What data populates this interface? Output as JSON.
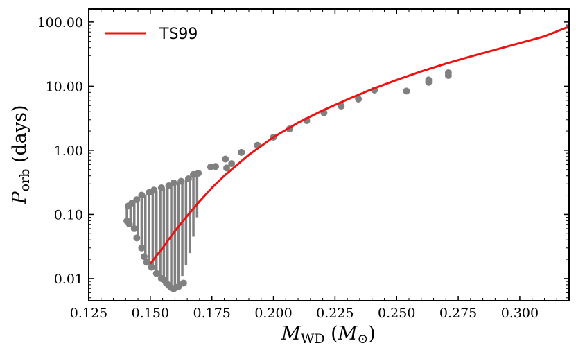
{
  "chart_data": {
    "type": "scatter",
    "title": "",
    "xlabel": {
      "main": "M",
      "sub": "WD",
      "unit_main": "M",
      "unit_sub": "⊙"
    },
    "ylabel": {
      "main": "P",
      "sub": "orb",
      "rest": "(days)"
    },
    "xlim": [
      0.125,
      0.32
    ],
    "ylim": [
      0.0045,
      160
    ],
    "yscale": "log",
    "x_ticks": [
      "0.125",
      "0.150",
      "0.175",
      "0.200",
      "0.225",
      "0.250",
      "0.275",
      "0.300"
    ],
    "y_ticks": [
      "0.01",
      "0.10",
      "1.00",
      "10.00",
      "100.00"
    ],
    "grid": false,
    "legend": {
      "position": "top-left",
      "entries": [
        {
          "label": "TS99",
          "color": "#ee1111"
        }
      ]
    },
    "series": [
      {
        "name": "TS99",
        "kind": "line",
        "color": "#ee1111",
        "x": [
          0.15,
          0.155,
          0.16,
          0.165,
          0.17,
          0.175,
          0.18,
          0.19,
          0.2,
          0.21,
          0.22,
          0.23,
          0.24,
          0.25,
          0.26,
          0.27,
          0.28,
          0.29,
          0.3,
          0.31,
          0.32
        ],
        "y": [
          0.017,
          0.03,
          0.055,
          0.095,
          0.16,
          0.26,
          0.4,
          0.85,
          1.6,
          2.7,
          4.2,
          6.2,
          9.0,
          12.5,
          17.0,
          22.5,
          29.0,
          37.0,
          47.0,
          60.0,
          85.0
        ]
      },
      {
        "name": "models",
        "kind": "scatter",
        "color": "#808080",
        "x": [
          0.2,
          0.2065,
          0.2135,
          0.2205,
          0.2275,
          0.2345,
          0.241,
          0.254,
          0.263,
          0.263,
          0.271,
          0.271,
          0.1935,
          0.187,
          0.183,
          0.181,
          0.1805,
          0.1765,
          0.1745,
          0.1695,
          0.1675,
          0.1655,
          0.1625,
          0.1595,
          0.1575,
          0.1545,
          0.1515,
          0.1495,
          0.1465,
          0.1445,
          0.1425,
          0.141,
          0.1405,
          0.1415,
          0.1435,
          0.1445,
          0.1465,
          0.1475,
          0.1485,
          0.1505,
          0.1525,
          0.1545,
          0.1555,
          0.1565,
          0.1575,
          0.1585,
          0.1595,
          0.1615,
          0.1635
        ],
        "y": [
          1.6,
          2.15,
          2.9,
          3.85,
          4.9,
          6.3,
          8.7,
          8.4,
          11.5,
          12.5,
          14.7,
          16.2,
          1.2,
          0.93,
          0.62,
          0.53,
          0.73,
          0.56,
          0.55,
          0.44,
          0.42,
          0.36,
          0.33,
          0.31,
          0.28,
          0.26,
          0.24,
          0.22,
          0.2,
          0.17,
          0.15,
          0.135,
          0.079,
          0.071,
          0.06,
          0.043,
          0.03,
          0.022,
          0.018,
          0.015,
          0.012,
          0.01,
          0.0095,
          0.0085,
          0.0078,
          0.0072,
          0.0069,
          0.0075,
          0.0085
        ]
      }
    ],
    "vertical_bands": {
      "color": "#808080",
      "segments": [
        {
          "x": 0.1405,
          "y_low": 0.075,
          "y_high": 0.14
        },
        {
          "x": 0.142,
          "y_low": 0.065,
          "y_high": 0.15
        },
        {
          "x": 0.1435,
          "y_low": 0.055,
          "y_high": 0.16
        },
        {
          "x": 0.145,
          "y_low": 0.04,
          "y_high": 0.17
        },
        {
          "x": 0.1465,
          "y_low": 0.03,
          "y_high": 0.185
        },
        {
          "x": 0.148,
          "y_low": 0.02,
          "y_high": 0.2
        },
        {
          "x": 0.1495,
          "y_low": 0.016,
          "y_high": 0.21
        },
        {
          "x": 0.151,
          "y_low": 0.014,
          "y_high": 0.22
        },
        {
          "x": 0.1525,
          "y_low": 0.012,
          "y_high": 0.235
        },
        {
          "x": 0.154,
          "y_low": 0.0105,
          "y_high": 0.245
        },
        {
          "x": 0.1555,
          "y_low": 0.0095,
          "y_high": 0.26
        },
        {
          "x": 0.157,
          "y_low": 0.0082,
          "y_high": 0.27
        },
        {
          "x": 0.1585,
          "y_low": 0.007,
          "y_high": 0.29
        },
        {
          "x": 0.16,
          "y_low": 0.0075,
          "y_high": 0.3
        },
        {
          "x": 0.1615,
          "y_low": 0.0085,
          "y_high": 0.32
        },
        {
          "x": 0.163,
          "y_low": 0.011,
          "y_high": 0.34
        },
        {
          "x": 0.1645,
          "y_low": 0.016,
          "y_high": 0.35
        },
        {
          "x": 0.166,
          "y_low": 0.025,
          "y_high": 0.37
        },
        {
          "x": 0.1675,
          "y_low": 0.045,
          "y_high": 0.4
        },
        {
          "x": 0.169,
          "y_low": 0.09,
          "y_high": 0.42
        }
      ]
    }
  }
}
